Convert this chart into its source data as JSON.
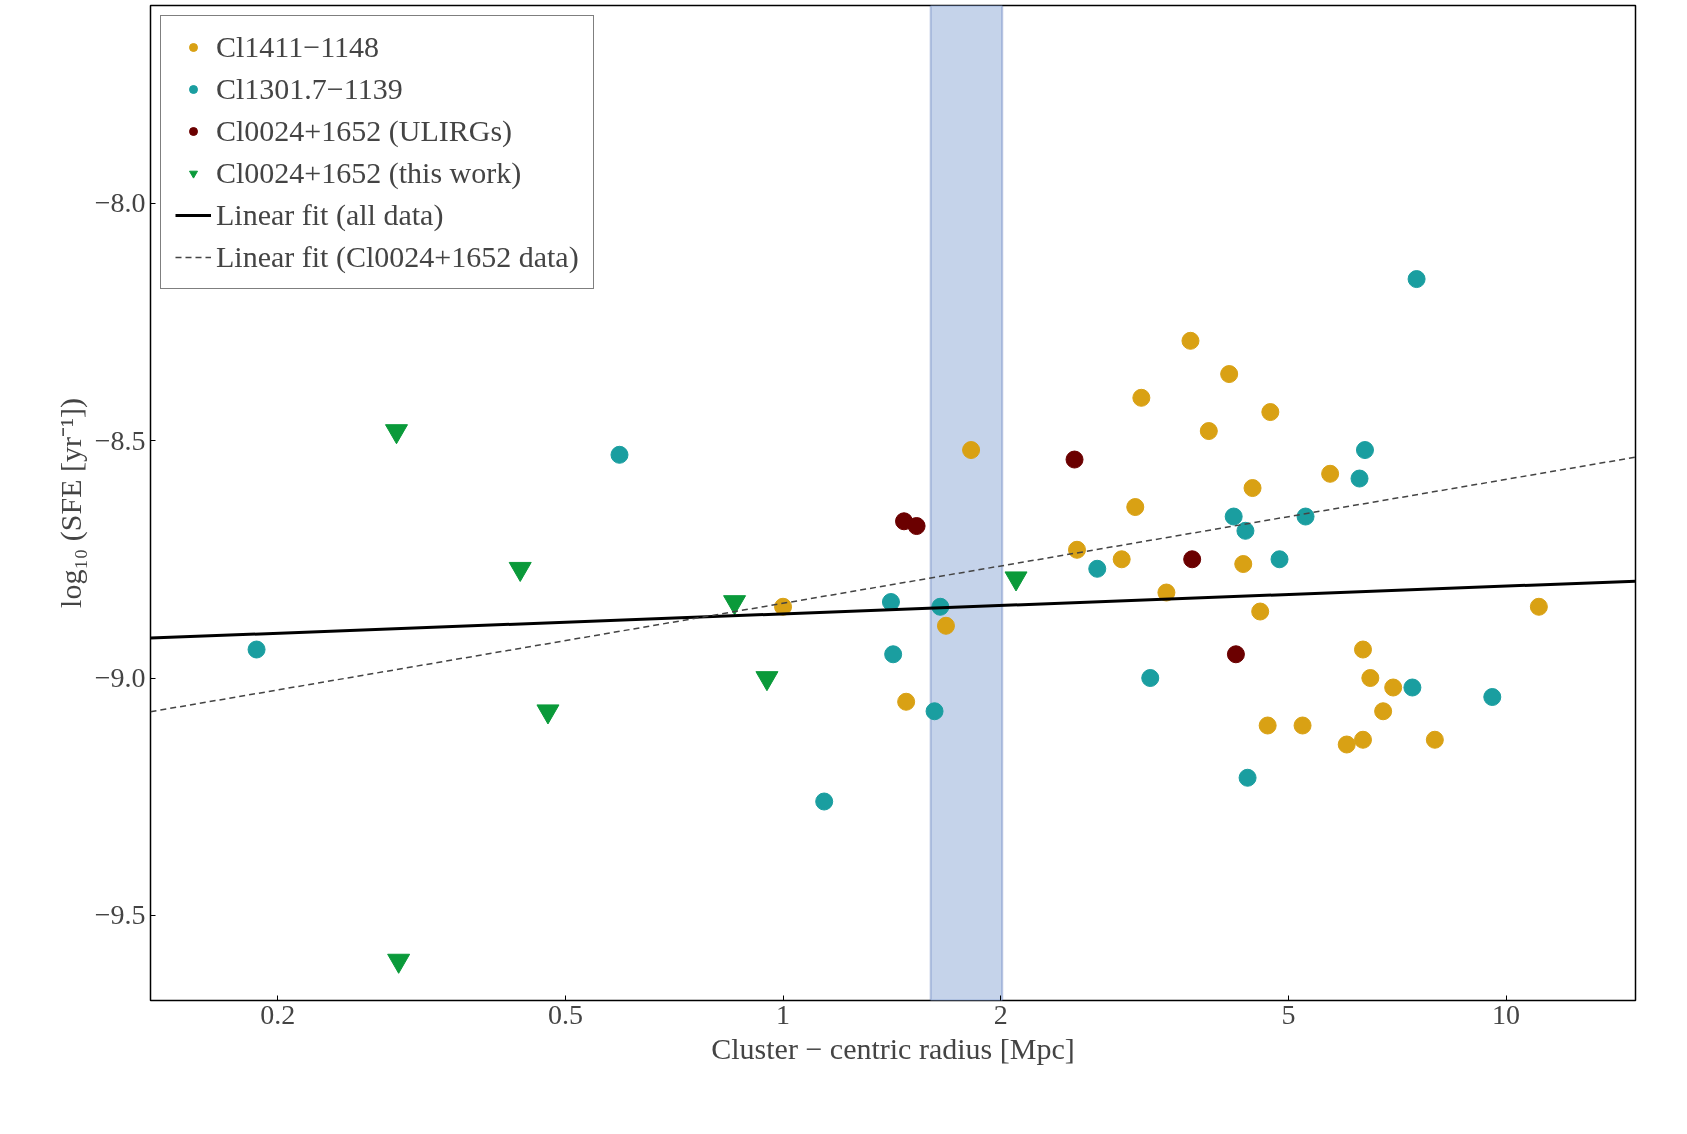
{
  "chart_data": {
    "type": "scatter",
    "xlabel": "Cluster − centric radius [Mpc]",
    "ylabel": "log₁₀ (SFE [yr⁻¹])",
    "log": "x",
    "grid": false,
    "legend": "top left",
    "xlim": [
      0.1334,
      15.1
    ],
    "ylim": [
      -9.679,
      -7.584
    ],
    "xticks": [
      0.2,
      0.5,
      1,
      2,
      5,
      10
    ],
    "yticks": [
      {
        "value": -8.0,
        "label": "−8.0"
      },
      {
        "value": -8.5,
        "label": "−8.5"
      },
      {
        "value": -9.0,
        "label": "−9.0"
      },
      {
        "value": -9.5,
        "label": "−9.5"
      }
    ],
    "bands": [
      {
        "axis": "x",
        "from": 1.6,
        "to": 2.01,
        "color": "#c5d3ea"
      }
    ],
    "series": [
      {
        "name": "Cl1411−1148",
        "marker": "circle",
        "color": "#d9a114",
        "x": [
          1.0,
          1.48,
          1.82,
          1.68,
          2.55,
          2.94,
          3.07,
          3.13,
          3.39,
          3.66,
          3.88,
          4.14,
          4.33,
          4.46,
          4.57,
          4.72,
          4.68,
          5.23,
          5.71,
          6.02,
          6.34,
          6.34,
          6.49,
          6.76,
          6.98,
          7.97,
          11.1
        ],
        "values": [
          -8.85,
          -9.05,
          -8.52,
          -8.89,
          -8.73,
          -8.75,
          -8.64,
          -8.41,
          -8.82,
          -8.29,
          -8.48,
          -8.36,
          -8.76,
          -8.6,
          -8.86,
          -8.44,
          -9.1,
          -9.1,
          -8.57,
          -9.14,
          -8.94,
          -9.13,
          -9.0,
          -9.07,
          -9.02,
          -9.13,
          -8.85
        ]
      },
      {
        "name": "Cl1301.7−1139",
        "marker": "circle",
        "color": "#1a9ea0",
        "x": [
          0.187,
          0.594,
          1.41,
          1.42,
          1.65,
          1.62,
          1.14,
          2.72,
          3.22,
          4.2,
          4.36,
          4.86,
          5.28,
          6.27,
          6.38,
          7.52,
          7.42,
          9.57,
          4.39
        ],
        "values": [
          -8.94,
          -8.53,
          -8.84,
          -8.95,
          -8.85,
          -9.07,
          -9.26,
          -8.77,
          -9.0,
          -8.66,
          -8.69,
          -8.75,
          -8.66,
          -8.58,
          -8.52,
          -8.16,
          -9.02,
          -9.04,
          -9.21
        ]
      },
      {
        "name": "Cl0024+1652 (ULIRGs)",
        "marker": "circle",
        "color": "#6b0000",
        "x": [
          1.47,
          1.53,
          2.53,
          3.68,
          4.23
        ],
        "values": [
          -8.67,
          -8.68,
          -8.54,
          -8.75,
          -8.95
        ]
      },
      {
        "name": "Cl0024+1652 (this work)",
        "marker": "triangle",
        "color": "#0a9a3a",
        "x": [
          0.292,
          0.433,
          0.857,
          0.95,
          0.473,
          0.294,
          2.1
        ],
        "values": [
          -8.48,
          -8.77,
          -8.84,
          -9.0,
          -9.07,
          -9.595,
          -8.79
        ]
      },
      {
        "name": "Linear fit (all data)",
        "type": "line",
        "line_style": "solid",
        "color": "#000000",
        "x": [
          0.1334,
          15.1
        ],
        "values": [
          -8.916,
          -8.796
        ]
      },
      {
        "name": "Linear fit (Cl0024+1652 data)",
        "type": "line",
        "line_style": "dashed",
        "color": "#444444",
        "x": [
          0.1334,
          15.1
        ],
        "values": [
          -9.071,
          -8.535
        ]
      }
    ]
  }
}
